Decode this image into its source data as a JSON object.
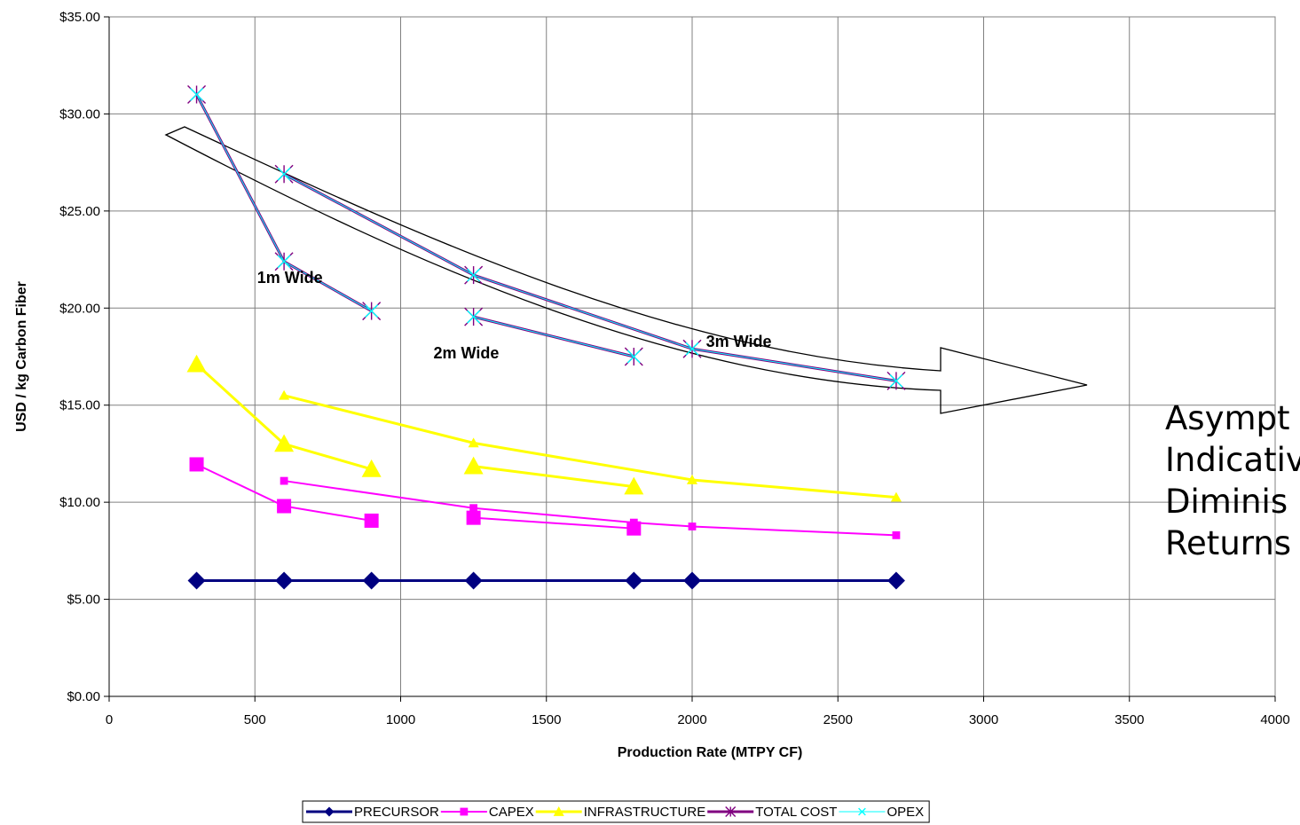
{
  "chart_data": {
    "type": "line",
    "title": "",
    "xlabel": "Production Rate (MTPY CF)",
    "ylabel": "USD / kg Carbon Fiber",
    "xlim": [
      0,
      4000
    ],
    "ylim": [
      0,
      35
    ],
    "x_ticks": [
      "0",
      "500",
      "1000",
      "1500",
      "2000",
      "2500",
      "3000",
      "3500",
      "4000"
    ],
    "y_ticks": [
      "$0.00",
      "$5.00",
      "$10.00",
      "$15.00",
      "$20.00",
      "$25.00",
      "$30.00",
      "$35.00"
    ],
    "grid": true,
    "legend_position": "bottom",
    "series": [
      {
        "name": "PRECURSOR",
        "color": "#000080",
        "marker": "diamond",
        "segments": [
          [
            [
              300,
              5.96
            ],
            [
              600,
              5.96
            ],
            [
              900,
              5.96
            ],
            [
              1250,
              5.96
            ],
            [
              1800,
              5.96
            ],
            [
              2000,
              5.96
            ],
            [
              2700,
              5.96
            ]
          ]
        ]
      },
      {
        "name": "CAPEX",
        "color": "#FF00FF",
        "marker": "square",
        "segments": [
          [
            [
              300,
              11.95
            ],
            [
              600,
              9.8
            ],
            [
              900,
              9.05
            ]
          ],
          [
            [
              600,
              11.1
            ],
            [
              1250,
              9.7
            ],
            [
              1800,
              8.95
            ],
            [
              2000,
              8.75
            ],
            [
              2700,
              8.3
            ]
          ],
          [
            [
              1250,
              9.2
            ],
            [
              1800,
              8.65
            ]
          ]
        ]
      },
      {
        "name": "INFRASTRUCTURE",
        "color": "#FFFF00",
        "marker": "triangle",
        "segments": [
          [
            [
              300,
              17.1
            ],
            [
              600,
              13.0
            ],
            [
              900,
              11.7
            ]
          ],
          [
            [
              600,
              15.5
            ],
            [
              1250,
              13.05
            ],
            [
              2000,
              11.15
            ],
            [
              2700,
              10.25
            ]
          ],
          [
            [
              1250,
              11.85
            ],
            [
              1800,
              10.8
            ]
          ]
        ]
      },
      {
        "name": "TOTAL COST",
        "color": "#800080",
        "marker": "star",
        "segments": [
          [
            [
              300,
              31.0
            ],
            [
              600,
              22.4
            ],
            [
              900,
              19.85
            ]
          ],
          [
            [
              600,
              26.9
            ],
            [
              1250,
              21.7
            ],
            [
              2000,
              17.9
            ],
            [
              2700,
              16.25
            ]
          ],
          [
            [
              1250,
              19.55
            ],
            [
              1800,
              17.5
            ]
          ]
        ]
      },
      {
        "name": "OPEX",
        "color": "#00FFFF",
        "marker": "x",
        "segments": [
          [
            [
              300,
              31.0
            ],
            [
              600,
              22.4
            ],
            [
              900,
              19.85
            ]
          ],
          [
            [
              600,
              26.9
            ],
            [
              1250,
              21.7
            ],
            [
              2000,
              17.9
            ],
            [
              2700,
              16.25
            ]
          ],
          [
            [
              1250,
              19.55
            ],
            [
              1800,
              17.5
            ]
          ]
        ]
      }
    ],
    "annotations": [
      {
        "text": "1m Wide",
        "x": 620,
        "y": 21.3
      },
      {
        "text": "2m Wide",
        "x": 1225,
        "y": 17.4
      },
      {
        "text": "3m Wide",
        "x": 2160,
        "y": 18.0
      }
    ]
  },
  "side_note": {
    "lines": [
      "Asympt",
      "Indicativ",
      "Diminis",
      "Returns"
    ]
  }
}
